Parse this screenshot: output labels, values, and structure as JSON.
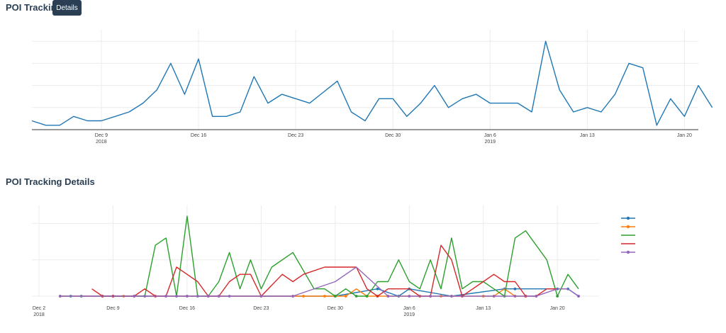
{
  "header": {
    "title": "POI Tracking",
    "details_button": "Details"
  },
  "details_section": {
    "title": "POI Tracking Details"
  },
  "colors": {
    "blue": "#1f77b4",
    "orange": "#ff7f0e",
    "green": "#2ca02c",
    "red": "#d62728",
    "purple": "#9467bd",
    "grid": "#ececec",
    "axis": "#333333"
  },
  "chart_data": [
    {
      "type": "line",
      "title": "",
      "x_start": "2018-12-04",
      "x_end": "2019-01-21",
      "x_ticks": [
        {
          "date": "2018-12-09",
          "label": "Dec 9",
          "sub": "2018"
        },
        {
          "date": "2018-12-16",
          "label": "Dec 16",
          "sub": ""
        },
        {
          "date": "2018-12-23",
          "label": "Dec 23",
          "sub": ""
        },
        {
          "date": "2018-12-30",
          "label": "Dec 30",
          "sub": ""
        },
        {
          "date": "2019-01-06",
          "label": "Jan 6",
          "sub": "2019"
        },
        {
          "date": "2019-01-13",
          "label": "Jan 13",
          "sub": ""
        },
        {
          "date": "2019-01-20",
          "label": "Jan 20",
          "sub": ""
        }
      ],
      "y_gridlines": [
        0,
        5,
        10,
        15,
        20
      ],
      "ylim": [
        0,
        21
      ],
      "grid": true,
      "series": [
        {
          "color": "blue",
          "points": [
            [
              "2018-12-04",
              2
            ],
            [
              "2018-12-05",
              1
            ],
            [
              "2018-12-06",
              1
            ],
            [
              "2018-12-07",
              3
            ],
            [
              "2018-12-08",
              2
            ],
            [
              "2018-12-09",
              2
            ],
            [
              "2018-12-10",
              3
            ],
            [
              "2018-12-11",
              4
            ],
            [
              "2018-12-12",
              6
            ],
            [
              "2018-12-13",
              9
            ],
            [
              "2018-12-14",
              15
            ],
            [
              "2018-12-15",
              8
            ],
            [
              "2018-12-16",
              16
            ],
            [
              "2018-12-17",
              3
            ],
            [
              "2018-12-18",
              3
            ],
            [
              "2018-12-19",
              4
            ],
            [
              "2018-12-20",
              12
            ],
            [
              "2018-12-21",
              6
            ],
            [
              "2018-12-22",
              8
            ],
            [
              "2018-12-23",
              7
            ],
            [
              "2018-12-24",
              6
            ],
            [
              "2018-12-25",
              8.5
            ],
            [
              "2018-12-26",
              11
            ],
            [
              "2018-12-27",
              4
            ],
            [
              "2018-12-28",
              2
            ],
            [
              "2018-12-29",
              7
            ],
            [
              "2018-12-30",
              7
            ],
            [
              "2018-12-31",
              3
            ],
            [
              "2019-01-01",
              6
            ],
            [
              "2019-01-02",
              10
            ],
            [
              "2019-01-03",
              5
            ],
            [
              "2019-01-04",
              7
            ],
            [
              "2019-01-05",
              8
            ],
            [
              "2019-01-06",
              6
            ],
            [
              "2019-01-07",
              6
            ],
            [
              "2019-01-08",
              6
            ],
            [
              "2019-01-09",
              4
            ],
            [
              "2019-01-10",
              20
            ],
            [
              "2019-01-11",
              9
            ],
            [
              "2019-01-12",
              4
            ],
            [
              "2019-01-13",
              5
            ],
            [
              "2019-01-14",
              4
            ],
            [
              "2019-01-15",
              8
            ],
            [
              "2019-01-16",
              15
            ],
            [
              "2019-01-17",
              14
            ],
            [
              "2019-01-18",
              1
            ],
            [
              "2019-01-19",
              7
            ],
            [
              "2019-01-20",
              3
            ],
            [
              "2019-01-21",
              10
            ],
            [
              "2019-01-22",
              5
            ]
          ]
        }
      ]
    },
    {
      "type": "line",
      "title": "",
      "x_start": "2018-12-02",
      "x_end": "2019-01-22",
      "x_ticks": [
        {
          "date": "2018-12-02",
          "label": "Dec 2",
          "sub": "2018"
        },
        {
          "date": "2018-12-09",
          "label": "Dec 9",
          "sub": ""
        },
        {
          "date": "2018-12-16",
          "label": "Dec 16",
          "sub": ""
        },
        {
          "date": "2018-12-23",
          "label": "Dec 23",
          "sub": ""
        },
        {
          "date": "2018-12-30",
          "label": "Dec 30",
          "sub": ""
        },
        {
          "date": "2019-01-06",
          "label": "Jan 6",
          "sub": "2019"
        },
        {
          "date": "2019-01-13",
          "label": "Jan 13",
          "sub": ""
        },
        {
          "date": "2019-01-20",
          "label": "Jan 20",
          "sub": ""
        }
      ],
      "y_gridlines": [
        0,
        5,
        10
      ],
      "ylim": [
        0,
        11.5
      ],
      "grid": true,
      "legend": "right",
      "series": [
        {
          "color": "blue",
          "points": [
            [
              "2018-12-04",
              0
            ],
            [
              "2018-12-05",
              0
            ],
            [
              "2018-12-06",
              0
            ],
            [
              "2018-12-09",
              0
            ],
            [
              "2018-12-16",
              0
            ],
            [
              "2018-12-30",
              0
            ],
            [
              "2019-01-03",
              1
            ],
            [
              "2019-01-05",
              0
            ],
            [
              "2019-01-06",
              1
            ],
            [
              "2019-01-10",
              0
            ],
            [
              "2019-01-15",
              1
            ],
            [
              "2019-01-16",
              1
            ],
            [
              "2019-01-20",
              1
            ],
            [
              "2019-01-21",
              1
            ],
            [
              "2019-01-22",
              0
            ]
          ]
        },
        {
          "color": "orange",
          "points": [
            [
              "2018-12-04",
              0
            ],
            [
              "2018-12-10",
              0
            ],
            [
              "2018-12-16",
              0
            ],
            [
              "2018-12-26",
              0
            ],
            [
              "2018-12-27",
              0
            ],
            [
              "2018-12-29",
              0
            ],
            [
              "2018-12-30",
              0
            ],
            [
              "2018-12-31",
              0
            ],
            [
              "2019-01-01",
              1
            ],
            [
              "2019-01-02",
              0
            ],
            [
              "2019-01-04",
              0
            ],
            [
              "2019-01-06",
              0
            ],
            [
              "2019-01-08",
              0
            ],
            [
              "2019-01-09",
              0
            ],
            [
              "2019-01-10",
              0
            ],
            [
              "2019-01-13",
              0
            ],
            [
              "2019-01-14",
              0
            ],
            [
              "2019-01-15",
              1
            ],
            [
              "2019-01-16",
              0
            ],
            [
              "2019-01-17",
              0
            ]
          ]
        },
        {
          "color": "green",
          "points": [
            [
              "2018-12-08",
              0
            ],
            [
              "2018-12-11",
              0
            ],
            [
              "2018-12-12",
              0
            ],
            [
              "2018-12-13",
              7
            ],
            [
              "2018-12-14",
              8
            ],
            [
              "2018-12-15",
              0
            ],
            [
              "2018-12-16",
              11
            ],
            [
              "2018-12-17",
              0
            ],
            [
              "2018-12-18",
              0
            ],
            [
              "2018-12-19",
              2
            ],
            [
              "2018-12-20",
              6
            ],
            [
              "2018-12-21",
              1
            ],
            [
              "2018-12-22",
              5
            ],
            [
              "2018-12-23",
              1
            ],
            [
              "2018-12-24",
              4
            ],
            [
              "2018-12-26",
              6
            ],
            [
              "2018-12-28",
              1
            ],
            [
              "2018-12-29",
              1
            ],
            [
              "2018-12-30",
              0
            ],
            [
              "2018-12-31",
              1
            ],
            [
              "2019-01-01",
              0
            ],
            [
              "2019-01-02",
              0
            ],
            [
              "2019-01-03",
              2
            ],
            [
              "2019-01-04",
              2
            ],
            [
              "2019-01-05",
              5
            ],
            [
              "2019-01-06",
              2
            ],
            [
              "2019-01-07",
              1
            ],
            [
              "2019-01-08",
              5
            ],
            [
              "2019-01-09",
              1
            ],
            [
              "2019-01-10",
              8
            ],
            [
              "2019-01-11",
              1
            ],
            [
              "2019-01-12",
              2
            ],
            [
              "2019-01-13",
              2
            ],
            [
              "2019-01-14",
              1
            ],
            [
              "2019-01-15",
              0
            ],
            [
              "2019-01-16",
              8
            ],
            [
              "2019-01-17",
              9
            ],
            [
              "2019-01-19",
              5
            ],
            [
              "2019-01-20",
              0
            ],
            [
              "2019-01-21",
              3
            ],
            [
              "2019-01-22",
              1
            ]
          ]
        },
        {
          "color": "red",
          "points": [
            [
              "2018-12-07",
              1
            ],
            [
              "2018-12-08",
              0
            ],
            [
              "2018-12-09",
              0
            ],
            [
              "2018-12-11",
              0
            ],
            [
              "2018-12-12",
              1
            ],
            [
              "2018-12-13",
              0
            ],
            [
              "2018-12-14",
              0
            ],
            [
              "2018-12-15",
              4
            ],
            [
              "2018-12-16",
              3
            ],
            [
              "2018-12-17",
              2
            ],
            [
              "2018-12-18",
              0
            ],
            [
              "2018-12-19",
              0
            ],
            [
              "2018-12-20",
              2
            ],
            [
              "2018-12-21",
              3
            ],
            [
              "2018-12-22",
              3
            ],
            [
              "2018-12-23",
              0
            ],
            [
              "2018-12-25",
              3
            ],
            [
              "2018-12-26",
              2
            ],
            [
              "2018-12-27",
              3
            ],
            [
              "2018-12-29",
              4
            ],
            [
              "2018-12-31",
              4
            ],
            [
              "2019-01-01",
              4
            ],
            [
              "2019-01-02",
              1
            ],
            [
              "2019-01-03",
              0
            ],
            [
              "2019-01-04",
              1
            ],
            [
              "2019-01-05",
              1
            ],
            [
              "2019-01-06",
              1
            ],
            [
              "2019-01-07",
              0
            ],
            [
              "2019-01-08",
              0
            ],
            [
              "2019-01-09",
              7
            ],
            [
              "2019-01-10",
              5
            ],
            [
              "2019-01-11",
              0
            ],
            [
              "2019-01-12",
              1
            ],
            [
              "2019-01-13",
              2
            ],
            [
              "2019-01-14",
              3
            ],
            [
              "2019-01-15",
              2
            ],
            [
              "2019-01-16",
              2
            ],
            [
              "2019-01-17",
              0
            ],
            [
              "2019-01-18",
              0
            ],
            [
              "2019-01-19",
              1
            ],
            [
              "2019-01-20",
              1
            ],
            [
              "2019-01-21",
              1
            ]
          ]
        },
        {
          "color": "purple",
          "points": [
            [
              "2018-12-04",
              0
            ],
            [
              "2018-12-11",
              0
            ],
            [
              "2018-12-12",
              0
            ],
            [
              "2018-12-14",
              0
            ],
            [
              "2018-12-15",
              0
            ],
            [
              "2018-12-16",
              0
            ],
            [
              "2018-12-17",
              0
            ],
            [
              "2018-12-18",
              0
            ],
            [
              "2018-12-19",
              0
            ],
            [
              "2018-12-20",
              0
            ],
            [
              "2018-12-23",
              0
            ],
            [
              "2018-12-26",
              0
            ],
            [
              "2018-12-30",
              2
            ],
            [
              "2019-01-01",
              4
            ],
            [
              "2019-01-04",
              0
            ],
            [
              "2019-01-06",
              0
            ],
            [
              "2019-01-08",
              0
            ],
            [
              "2019-01-10",
              0
            ],
            [
              "2019-01-14",
              0
            ],
            [
              "2019-01-16",
              0
            ],
            [
              "2019-01-18",
              0
            ],
            [
              "2019-01-20",
              1
            ],
            [
              "2019-01-21",
              1
            ],
            [
              "2019-01-22",
              0
            ]
          ]
        }
      ]
    }
  ]
}
